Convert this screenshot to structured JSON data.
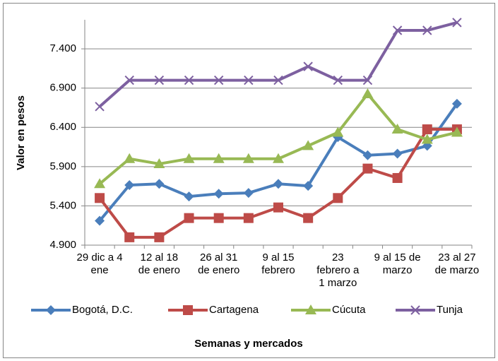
{
  "chart_data": {
    "type": "line",
    "x_label": "Semanas y mercados",
    "y_label": "Valor en pesos",
    "categories": [
      "29 dic a 4 ene",
      null,
      "12 al 18 de enero",
      null,
      "26 al 31 de enero",
      null,
      "9 al 15 febrero",
      null,
      "23 febrero a 1 marzo",
      null,
      "9 al 15 de marzo",
      null,
      "23 al 27 de marzo"
    ],
    "series": [
      {
        "name": "Bogotá, D.C.",
        "color": "#4a7ebb",
        "marker": "diamond",
        "values": [
          5210,
          5665,
          5680,
          5520,
          5555,
          5565,
          5680,
          5655,
          6275,
          6045,
          6065,
          6165,
          6700
        ]
      },
      {
        "name": "Cartagena",
        "color": "#be4b48",
        "marker": "square",
        "values": [
          5500,
          5000,
          5000,
          5245,
          5245,
          5245,
          5380,
          5245,
          5500,
          5875,
          5755,
          6375,
          6375
        ]
      },
      {
        "name": "Cúcuta",
        "color": "#98b954",
        "marker": "triangle",
        "values": [
          5680,
          6000,
          5935,
          6000,
          6000,
          6000,
          6000,
          6165,
          6335,
          6825,
          6375,
          6245,
          6335
        ]
      },
      {
        "name": "Tunja",
        "color": "#7d60a0",
        "marker": "x",
        "values": [
          6665,
          7000,
          7000,
          7000,
          7000,
          7000,
          7000,
          7175,
          7000,
          7000,
          7635,
          7635,
          7735
        ]
      }
    ],
    "ylim": [
      4900,
      7770
    ],
    "yticks": [
      {
        "value": 4900,
        "label": "4.900"
      },
      {
        "value": 5400,
        "label": "5.400"
      },
      {
        "value": 5900,
        "label": "5.900"
      },
      {
        "value": 6400,
        "label": "6.400"
      },
      {
        "value": 6900,
        "label": "6.900"
      },
      {
        "value": 7400,
        "label": "7.400"
      }
    ],
    "grid": true,
    "legend": "bottom"
  }
}
